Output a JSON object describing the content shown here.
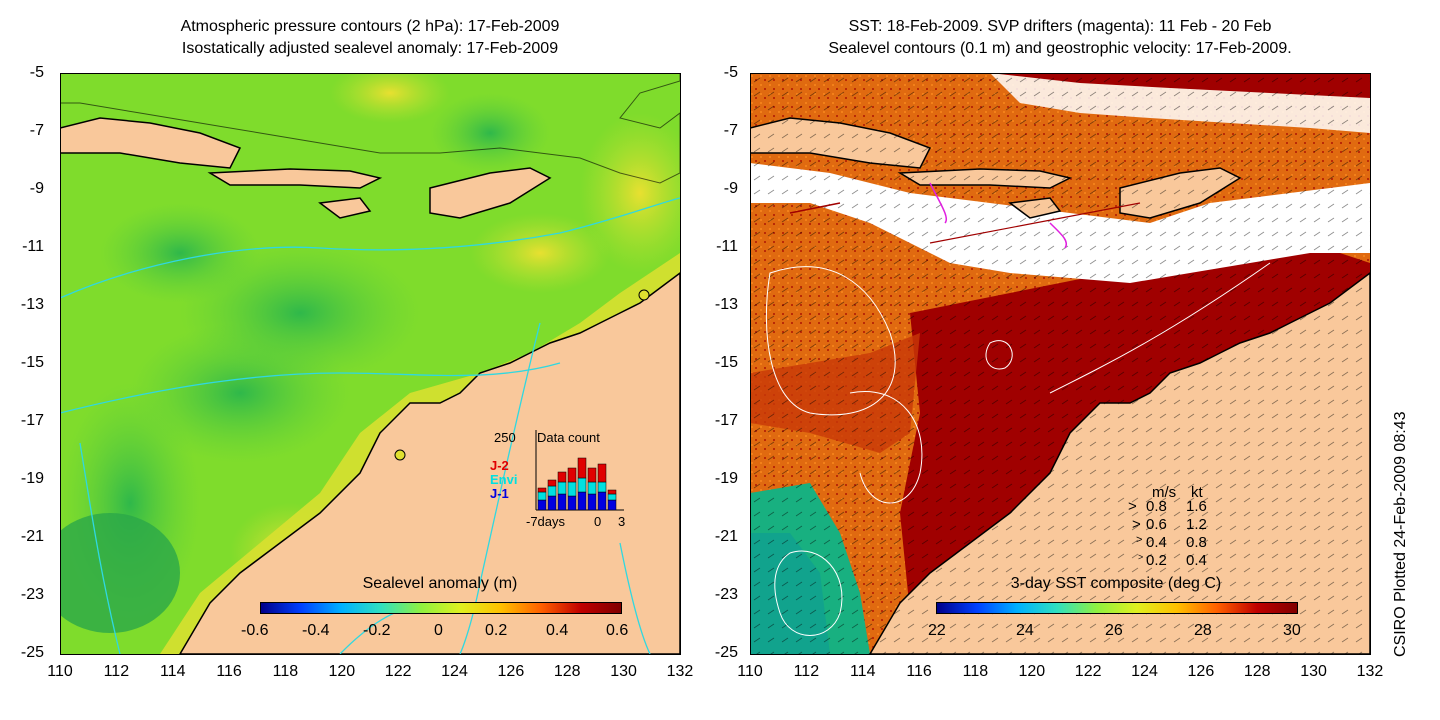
{
  "left_panel": {
    "title_line1": "Atmospheric pressure contours (2 hPa): 17-Feb-2009",
    "title_line2": "Isostatically adjusted sealevel anomaly: 17-Feb-2009",
    "colorbar_title": "Sealevel anomaly (m)",
    "colorbar_ticks": [
      "-0.6",
      "-0.4",
      "-0.2",
      "0",
      "0.2",
      "0.4",
      "0.6"
    ],
    "inset": {
      "max_label": "250",
      "title": "Data count",
      "legend": [
        "J-2",
        "Envi",
        "J-1"
      ],
      "legend_colors": [
        "#e00000",
        "#00e0e0",
        "#0000e0"
      ],
      "x_labels": [
        "-7days",
        "0",
        "3"
      ]
    }
  },
  "right_panel": {
    "title_line1": "SST: 18-Feb-2009. SVP drifters (magenta): 11 Feb - 20 Feb",
    "title_line2": "Sealevel contours (0.1 m) and geostrophic velocity: 17-Feb-2009.",
    "colorbar_title": "3-day SST composite (deg C)",
    "colorbar_ticks": [
      "22",
      "24",
      "26",
      "28",
      "30"
    ],
    "speed_legend": {
      "header_ms": "m/s",
      "header_kt": "kt",
      "rows": [
        {
          "ms": "0.8",
          "kt": "1.6"
        },
        {
          "ms": "0.6",
          "kt": "1.2"
        },
        {
          "ms": "0.4",
          "kt": "0.8"
        },
        {
          "ms": "0.2",
          "kt": "0.4"
        }
      ]
    }
  },
  "y_ticks": [
    "-5",
    "-7",
    "-9",
    "-11",
    "-13",
    "-15",
    "-17",
    "-19",
    "-21",
    "-23",
    "-25"
  ],
  "x_ticks": [
    "110",
    "112",
    "114",
    "116",
    "118",
    "120",
    "122",
    "124",
    "126",
    "128",
    "130",
    "132"
  ],
  "credit": "CSIRO Plotted 24-Feb-2009 08:43",
  "colors": {
    "land": "#f9c89b",
    "ocean_left": "#7fdc2c",
    "sst_warm": "#a00000",
    "sst_mid": "#e06a10",
    "contour_cyan": "#30d8e0",
    "drifter_magenta": "#e020e0"
  }
}
